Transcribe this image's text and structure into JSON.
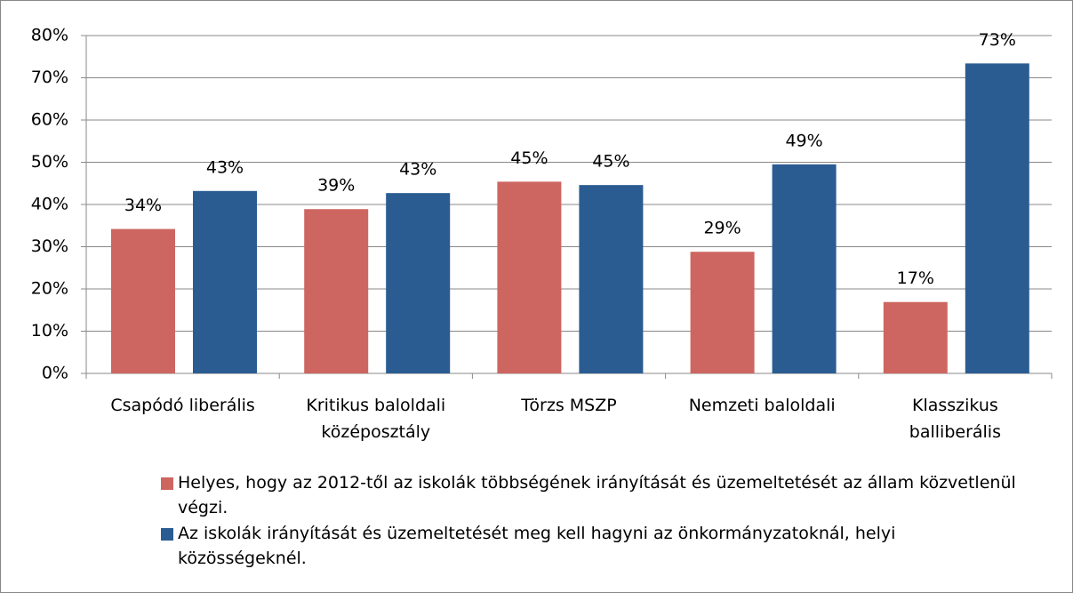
{
  "chart_data": {
    "type": "bar",
    "categories": [
      "Csapódó liberális",
      "Kritikus baloldali középosztály",
      "Törzs MSZP",
      "Nemzeti baloldali",
      "Klasszikus balliberális"
    ],
    "series": [
      {
        "name": "Helyes, hogy az 2012-től az iskolák többségének irányítását és üzemeltetését az állam közvetlenül végzi.",
        "color": "#cd6660",
        "values": [
          34.2,
          38.9,
          45.4,
          28.8,
          16.9
        ],
        "value_labels": [
          "34%",
          "39%",
          "45%",
          "29%",
          "17%"
        ]
      },
      {
        "name": "Az iskolák irányítását és üzemeltetését meg kell hagyni az önkormányzatoknál, helyi közösségeknél.",
        "color": "#2a5c92",
        "values": [
          43.2,
          42.7,
          44.6,
          49.5,
          73.4
        ],
        "value_labels": [
          "43%",
          "43%",
          "45%",
          "49%",
          "73%"
        ]
      }
    ],
    "ylim": [
      0,
      80
    ],
    "yticks": [
      {
        "value": 0,
        "label": "0%"
      },
      {
        "value": 10,
        "label": "10%"
      },
      {
        "value": 20,
        "label": "20%"
      },
      {
        "value": 30,
        "label": "30%"
      },
      {
        "value": 40,
        "label": "40%"
      },
      {
        "value": 50,
        "label": "50%"
      },
      {
        "value": 60,
        "label": "60%"
      },
      {
        "value": 70,
        "label": "70%"
      },
      {
        "value": 80,
        "label": "80%"
      }
    ],
    "grid": true,
    "legend": "bottom"
  }
}
